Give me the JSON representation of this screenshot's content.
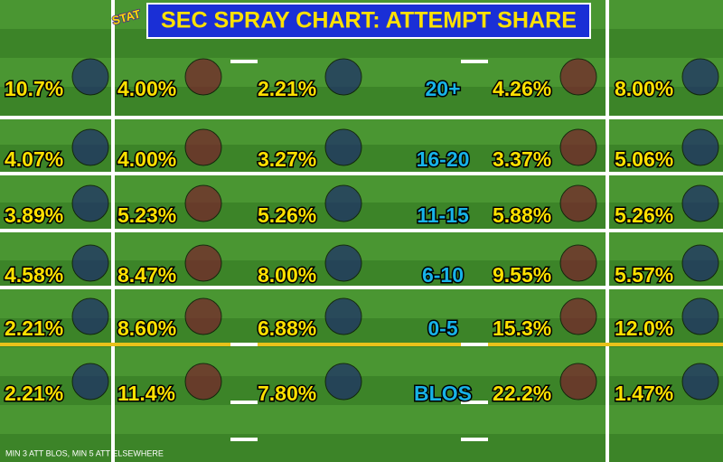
{
  "title": "SEC SPRAY CHART: ATTEMPT SHARE",
  "logo": "STAT",
  "rows": [
    {
      "label": "20+",
      "cells": [
        "10.7%",
        "4.00%",
        "2.21%",
        "4.26%",
        "8.00%"
      ]
    },
    {
      "label": "16-20",
      "cells": [
        "4.07%",
        "4.00%",
        "3.27%",
        "3.37%",
        "5.06%"
      ]
    },
    {
      "label": "11-15",
      "cells": [
        "3.89%",
        "5.23%",
        "5.26%",
        "5.88%",
        "5.26%"
      ]
    },
    {
      "label": "6-10",
      "cells": [
        "4.58%",
        "8.47%",
        "8.00%",
        "9.55%",
        "5.57%"
      ]
    },
    {
      "label": "0-5",
      "cells": [
        "2.21%",
        "8.60%",
        "6.88%",
        "15.3%",
        "12.0%"
      ]
    },
    {
      "label": "BLOS",
      "cells": [
        "2.21%",
        "11.4%",
        "7.80%",
        "22.2%",
        "1.47%"
      ]
    }
  ],
  "footnote": "MIN 3 ATT BLOS, MIN 5 ATT ELSEWHERE"
}
